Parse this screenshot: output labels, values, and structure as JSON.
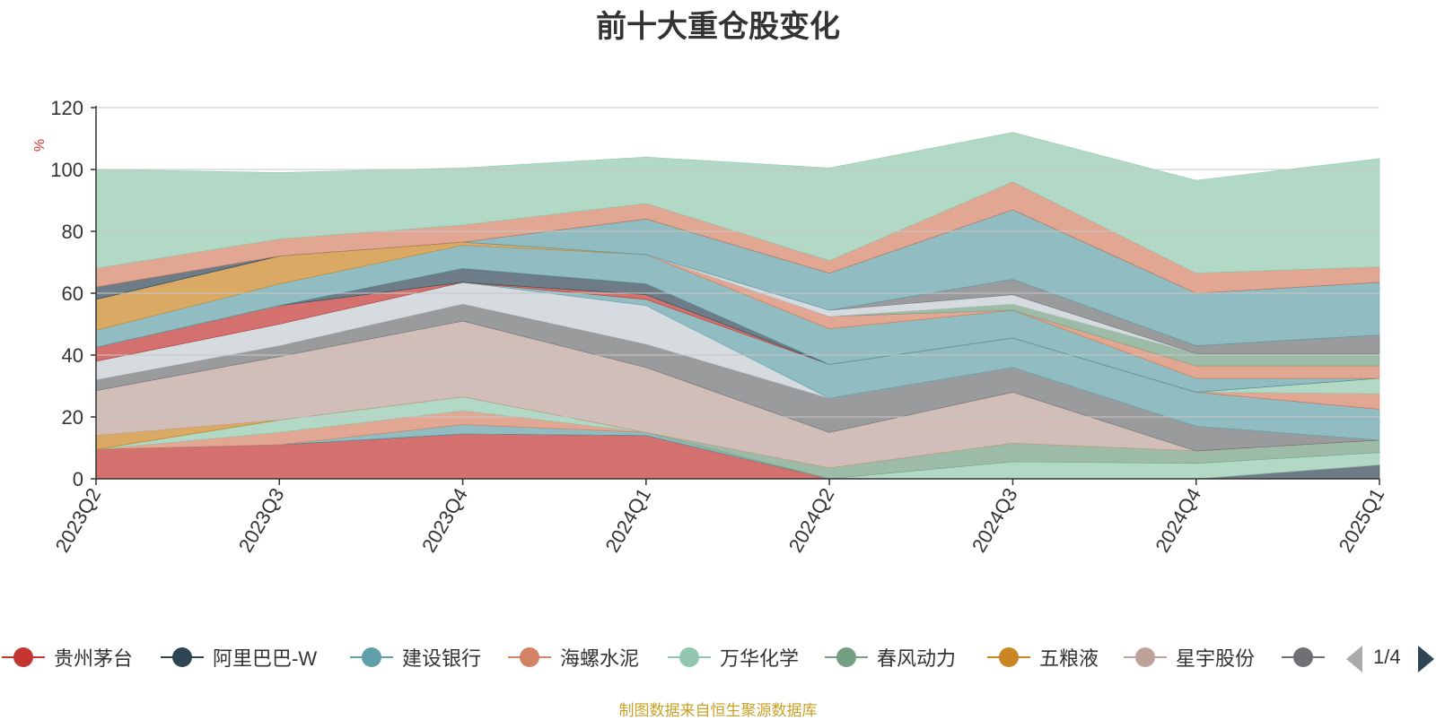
{
  "title": "前十大重仓股变化",
  "source_note": "制图数据来自恒生聚源数据库",
  "legend_page": "1/4",
  "chart_data": {
    "type": "area",
    "stacked": true,
    "title": "前十大重仓股变化",
    "ylabel": "%",
    "ylim": [
      0,
      120
    ],
    "yticks": [
      0,
      20,
      40,
      60,
      80,
      100,
      120
    ],
    "categories": [
      "2023Q2",
      "2023Q3",
      "2023Q4",
      "2024Q1",
      "2024Q2",
      "2024Q3",
      "2024Q4",
      "2025Q1"
    ],
    "legend_position": "bottom",
    "series": [
      {
        "name": "贵州茅台",
        "color": "#c23531",
        "values": [
          9.5,
          11,
          14.5,
          14,
          0,
          0,
          0,
          0
        ]
      },
      {
        "name": "",
        "color": "#2f4554",
        "values": [
          0,
          0,
          0,
          0,
          0,
          0,
          0,
          4.5
        ]
      },
      {
        "name": "",
        "color": "#61a0a8",
        "values": [
          0,
          0,
          3,
          1,
          0,
          0,
          0,
          0
        ]
      },
      {
        "name": "",
        "color": "#d48265",
        "values": [
          0,
          4,
          4.5,
          0,
          0,
          0,
          0,
          0
        ]
      },
      {
        "name": "",
        "color": "#91c7ae",
        "values": [
          0,
          4,
          4.5,
          0,
          0,
          5.5,
          5,
          4
        ]
      },
      {
        "name": "",
        "color": "#749f83",
        "values": [
          0,
          0,
          0,
          0,
          3.5,
          6,
          4,
          4
        ]
      },
      {
        "name": "",
        "color": "#ca8622",
        "values": [
          4.5,
          0,
          0,
          0,
          0,
          0,
          0,
          0
        ]
      },
      {
        "name": "",
        "color": "#bda29a",
        "values": [
          14.5,
          20.5,
          24.5,
          21,
          11.5,
          16.5,
          0,
          0
        ]
      },
      {
        "name": "",
        "color": "#6e7074",
        "values": [
          3.5,
          3.5,
          5.5,
          7.5,
          11,
          8,
          8,
          0
        ]
      },
      {
        "name": "",
        "color": "#546570",
        "values": [
          0,
          0,
          0,
          0,
          0,
          0,
          0,
          0
        ]
      },
      {
        "name": "",
        "color": "#c4ccd3",
        "values": [
          6,
          7,
          7,
          12.5,
          0,
          0,
          0,
          0
        ]
      },
      {
        "name": "",
        "color": "#61a0a8",
        "values": [
          0,
          0,
          0,
          2,
          11,
          9.5,
          11,
          10
        ]
      },
      {
        "name": "",
        "color": "#c23531",
        "values": [
          4.5,
          6,
          0,
          1.5,
          0,
          0,
          0,
          0
        ]
      },
      {
        "name": "",
        "color": "#d48265",
        "values": [
          0,
          0,
          0,
          0,
          0,
          0,
          0,
          5
        ]
      },
      {
        "name": "",
        "color": "#91c7ae",
        "values": [
          0,
          0,
          0,
          0,
          0,
          0,
          0,
          5
        ]
      },
      {
        "name": "",
        "color": "#2f4554",
        "values": [
          0,
          0,
          4.5,
          3.5,
          0,
          0,
          0,
          0
        ]
      },
      {
        "name": "",
        "color": "#61a0a8",
        "values": [
          5.5,
          7,
          7.5,
          9.5,
          11.5,
          9,
          4.5,
          0
        ]
      },
      {
        "name": "",
        "color": "#ca8622",
        "values": [
          10,
          9,
          1,
          0,
          0,
          0,
          0,
          0
        ]
      },
      {
        "name": "",
        "color": "#d48265",
        "values": [
          0,
          0,
          0,
          0,
          4,
          0,
          4,
          4
        ]
      },
      {
        "name": "",
        "color": "#749f83",
        "values": [
          0,
          0,
          0,
          0,
          0,
          2,
          4,
          4
        ]
      },
      {
        "name": "",
        "color": "#c4ccd3",
        "values": [
          0,
          0,
          0,
          0,
          2,
          3,
          0,
          0
        ]
      },
      {
        "name": "",
        "color": "#6e7074",
        "values": [
          0,
          0,
          0,
          0,
          0,
          5,
          2.5,
          6
        ]
      },
      {
        "name": "",
        "color": "#61a0a8",
        "values": [
          0,
          0,
          0,
          11.5,
          12,
          22.5,
          17,
          17
        ]
      },
      {
        "name": "",
        "color": "#2f4554",
        "values": [
          4,
          0,
          0,
          0,
          0,
          0,
          0,
          0
        ]
      },
      {
        "name": "",
        "color": "#d48265",
        "values": [
          6,
          5.5,
          5.5,
          5,
          4,
          9,
          6.5,
          5
        ]
      },
      {
        "name": "",
        "color": "#91c7ae",
        "values": [
          32,
          21.5,
          18.5,
          15,
          30,
          16,
          30,
          35
        ]
      }
    ]
  },
  "legend": [
    {
      "label": "贵州茅台",
      "color": "#c23531"
    },
    {
      "label": "阿里巴巴-W",
      "color": "#2f4554"
    },
    {
      "label": "建设银行",
      "color": "#61a0a8"
    },
    {
      "label": "海螺水泥",
      "color": "#d48265"
    },
    {
      "label": "万华化学",
      "color": "#91c7ae"
    },
    {
      "label": "春风动力",
      "color": "#749f83"
    },
    {
      "label": "五粮液",
      "color": "#ca8622"
    },
    {
      "label": "星宇股份",
      "color": "#bda29a"
    },
    {
      "label": "",
      "color": "#6e7074"
    }
  ]
}
